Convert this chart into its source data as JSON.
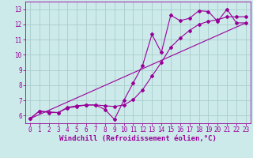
{
  "title": "",
  "xlabel": "Windchill (Refroidissement éolien,°C)",
  "ylabel": "",
  "background_color": "#cceaea",
  "grid_color": "#aacccc",
  "line_color": "#990099",
  "xlim": [
    -0.5,
    23.5
  ],
  "ylim": [
    5.5,
    13.5
  ],
  "xticks": [
    0,
    1,
    2,
    3,
    4,
    5,
    6,
    7,
    8,
    9,
    10,
    11,
    12,
    13,
    14,
    15,
    16,
    17,
    18,
    19,
    20,
    21,
    22,
    23
  ],
  "yticks": [
    6,
    7,
    8,
    9,
    10,
    11,
    12,
    13
  ],
  "curve1_x": [
    0,
    1,
    2,
    3,
    4,
    5,
    6,
    7,
    8,
    9,
    10,
    11,
    12,
    13,
    14,
    15,
    16,
    17,
    18,
    19,
    20,
    21,
    22,
    23
  ],
  "curve1_y": [
    5.8,
    6.3,
    6.2,
    6.2,
    6.5,
    6.6,
    6.7,
    6.7,
    6.4,
    5.75,
    7.0,
    8.15,
    9.3,
    11.35,
    10.15,
    12.6,
    12.25,
    12.4,
    12.9,
    12.85,
    12.2,
    13.0,
    12.1,
    12.1
  ],
  "curve2_x": [
    0,
    1,
    2,
    3,
    4,
    5,
    6,
    7,
    8,
    9,
    10,
    11,
    12,
    13,
    14,
    15,
    16,
    17,
    18,
    19,
    20,
    21,
    22,
    23
  ],
  "curve2_y": [
    5.8,
    6.3,
    6.25,
    6.2,
    6.55,
    6.65,
    6.7,
    6.7,
    6.65,
    6.6,
    6.7,
    7.05,
    7.7,
    8.6,
    9.5,
    10.5,
    11.1,
    11.6,
    12.0,
    12.2,
    12.3,
    12.5,
    12.5,
    12.5
  ],
  "line_x": [
    0,
    23
  ],
  "line_y": [
    5.8,
    12.1
  ],
  "marker": "D",
  "markersize": 2.0,
  "linewidth": 0.8,
  "xlabel_fontsize": 6.5,
  "tick_fontsize": 5.5
}
